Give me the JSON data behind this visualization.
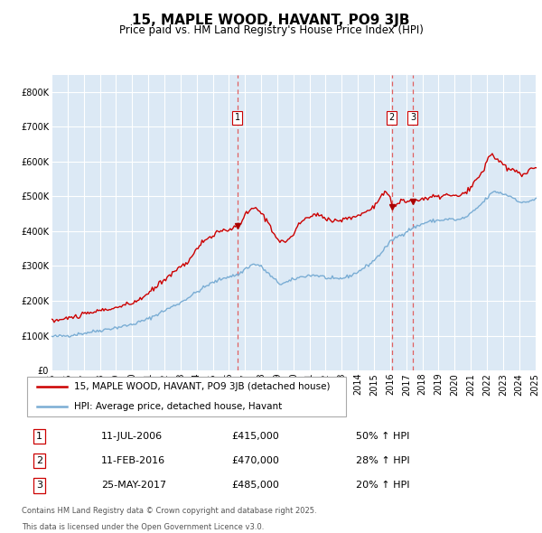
{
  "title": "15, MAPLE WOOD, HAVANT, PO9 3JB",
  "subtitle": "Price paid vs. HM Land Registry's House Price Index (HPI)",
  "legend_line1": "15, MAPLE WOOD, HAVANT, PO9 3JB (detached house)",
  "legend_line2": "HPI: Average price, detached house, Havant",
  "footnote1": "Contains HM Land Registry data © Crown copyright and database right 2025.",
  "footnote2": "This data is licensed under the Open Government Licence v3.0.",
  "sale_labels": [
    "1",
    "2",
    "3"
  ],
  "sale_dates_str": [
    "11-JUL-2006",
    "11-FEB-2016",
    "25-MAY-2017"
  ],
  "sale_prices_str": [
    "£415,000",
    "£470,000",
    "£485,000"
  ],
  "sale_hpi_str": [
    "50% ↑ HPI",
    "28% ↑ HPI",
    "20% ↑ HPI"
  ],
  "sale_dates_num": [
    2006.53,
    2016.11,
    2017.4
  ],
  "sale_prices": [
    415000,
    470000,
    485000
  ],
  "bg_color": "#dce9f5",
  "grid_color": "#ffffff",
  "red_line_color": "#cc0000",
  "blue_line_color": "#7aadd4",
  "vline_color": "#e06060",
  "dot_color": "#aa0000",
  "ylim": [
    0,
    850000
  ],
  "yticks": [
    0,
    100000,
    200000,
    300000,
    400000,
    500000,
    600000,
    700000,
    800000
  ],
  "ytick_labels": [
    "£0",
    "£100K",
    "£200K",
    "£300K",
    "£400K",
    "£500K",
    "£600K",
    "£700K",
    "£800K"
  ],
  "xmin_year": 1995,
  "xmax_year": 2025,
  "xticks": [
    1995,
    1996,
    1997,
    1998,
    1999,
    2000,
    2001,
    2002,
    2003,
    2004,
    2005,
    2006,
    2007,
    2008,
    2009,
    2010,
    2011,
    2012,
    2013,
    2014,
    2015,
    2016,
    2017,
    2018,
    2019,
    2020,
    2021,
    2022,
    2023,
    2024,
    2025
  ],
  "title_fontsize": 11,
  "subtitle_fontsize": 8.5,
  "axis_fontsize": 7,
  "legend_fontsize": 7.5,
  "table_fontsize": 8,
  "footnote_fontsize": 6
}
